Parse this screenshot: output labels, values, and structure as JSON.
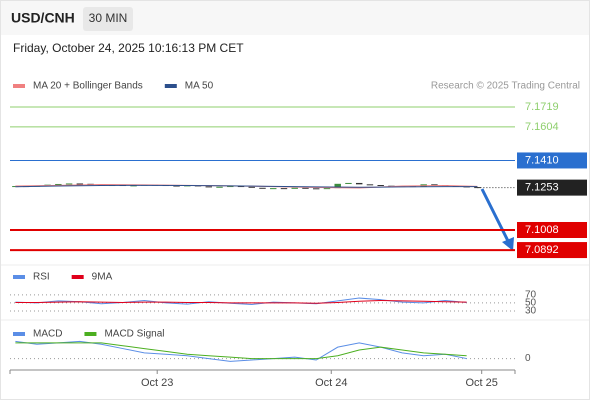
{
  "header": {
    "symbol": "USD/CNH",
    "timeframe": "30 MIN",
    "datetime": "Friday, October 24, 2025 10:16:13 PM CET"
  },
  "chart_data": [
    {
      "type": "candlestick",
      "source": "Research © 2025 Trading Central",
      "xlim": [
        -0.5,
        46.5
      ],
      "ylim": [
        7.0823,
        7.1904
      ],
      "yticks": [
        7.1719,
        7.1604,
        {
          "value": 7.141,
          "label": "7.1410"
        },
        7.1008,
        7.0892
      ],
      "ytick_colors": [
        "#8fcf6e",
        "#8fcf6e",
        "#2a6fcf",
        "#e00000",
        "#e00000"
      ],
      "label_boxes": [
        false,
        false,
        true,
        true,
        true
      ],
      "last": 7.1253,
      "up_color": "#3c8c3c",
      "down_color": "#333333",
      "open": [
        7.126,
        7.1262,
        7.1258,
        7.1265,
        7.127,
        7.1274,
        7.1277,
        7.1275,
        7.1271,
        7.1266,
        7.1268,
        7.1263,
        7.1266,
        7.127,
        7.1268,
        7.1265,
        7.1262,
        7.1266,
        7.126,
        7.1255,
        7.1258,
        7.1262,
        7.1258,
        7.1252,
        7.1248,
        7.125,
        7.1246,
        7.1252,
        7.1249,
        7.1245,
        7.125,
        7.1275,
        7.128,
        7.1272,
        7.1268,
        7.1264,
        7.1259,
        7.1262,
        7.1258,
        7.1272,
        7.1268,
        7.1264,
        7.126,
        7.1256
      ],
      "close": [
        7.1262,
        7.1258,
        7.1265,
        7.127,
        7.1274,
        7.1277,
        7.1275,
        7.1271,
        7.1266,
        7.1268,
        7.1263,
        7.1266,
        7.127,
        7.1268,
        7.1265,
        7.1262,
        7.1266,
        7.126,
        7.1255,
        7.1258,
        7.1262,
        7.1258,
        7.1252,
        7.1248,
        7.125,
        7.1246,
        7.1252,
        7.1249,
        7.1245,
        7.125,
        7.1275,
        7.128,
        7.1272,
        7.1268,
        7.1264,
        7.1259,
        7.1262,
        7.1258,
        7.1272,
        7.1268,
        7.1264,
        7.126,
        7.1256,
        7.1253
      ],
      "series": [
        {
          "name": "MA 20 + Bollinger Bands",
          "color": "#f08080",
          "x": [
            0,
            4,
            8,
            12,
            16,
            20,
            24,
            28,
            32,
            36,
            40,
            43
          ],
          "values": [
            7.1262,
            7.1266,
            7.1271,
            7.1269,
            7.1266,
            7.1263,
            7.1259,
            7.1254,
            7.1251,
            7.1262,
            7.1265,
            7.126
          ]
        },
        {
          "name": "MA 50",
          "color": "#2c4f8c",
          "x": [
            0,
            4,
            8,
            12,
            16,
            20,
            24,
            28,
            32,
            36,
            40,
            43
          ],
          "values": [
            7.1258,
            7.1262,
            7.1265,
            7.1266,
            7.1265,
            7.1263,
            7.126,
            7.1257,
            7.1255,
            7.1257,
            7.1259,
            7.1259
          ]
        }
      ]
    },
    {
      "type": "line",
      "xlim": [
        -0.5,
        46.5
      ],
      "ylim": [
        20,
        82
      ],
      "yticks": [
        70,
        50,
        30
      ],
      "series": [
        {
          "name": "RSI",
          "color": "#5b8ee6",
          "x": [
            0,
            2,
            4,
            6,
            8,
            10,
            12,
            14,
            16,
            18,
            20,
            22,
            24,
            26,
            28,
            30,
            32,
            34,
            36,
            38,
            40,
            42
          ],
          "values": [
            52,
            50,
            55,
            53,
            48,
            51,
            56,
            50,
            47,
            53,
            49,
            46,
            52,
            50,
            48,
            55,
            62,
            58,
            52,
            50,
            56,
            51
          ]
        },
        {
          "name": "9MA",
          "color": "#e0001b",
          "x": [
            0,
            2,
            4,
            6,
            8,
            10,
            12,
            14,
            16,
            18,
            20,
            22,
            24,
            26,
            28,
            30,
            32,
            34,
            36,
            38,
            40,
            42
          ],
          "values": [
            51,
            51,
            52,
            53,
            52,
            51,
            52,
            52,
            51,
            51,
            50,
            50,
            50,
            50,
            49,
            51,
            54,
            56,
            55,
            54,
            53,
            52
          ]
        }
      ]
    },
    {
      "type": "line",
      "xlim": [
        -0.5,
        46.5
      ],
      "ylim": [
        -0.0008,
        0.002
      ],
      "yticks": [
        0
      ],
      "xticks": [
        {
          "value": 13.2,
          "label": "Oct 23"
        },
        {
          "value": 29.4,
          "label": "Oct 24"
        },
        {
          "value": 43.4,
          "label": "Oct 25"
        }
      ],
      "series": [
        {
          "name": "MACD",
          "color": "#5b8ee6",
          "x": [
            0,
            2,
            4,
            6,
            8,
            10,
            12,
            14,
            16,
            18,
            20,
            22,
            24,
            26,
            28,
            30,
            32,
            34,
            36,
            38,
            40,
            42
          ],
          "values": [
            0.0012,
            0.001,
            0.0011,
            0.0012,
            0.001,
            0.0007,
            0.0004,
            0.0003,
            0.0002,
            0.0,
            -0.0002,
            -0.0001,
            0.0,
            0.0001,
            -0.0001,
            0.0008,
            0.0011,
            0.0008,
            0.0004,
            0.0002,
            0.0003,
            0.0
          ]
        },
        {
          "name": "MACD Signal",
          "color": "#4caf20",
          "x": [
            0,
            2,
            4,
            6,
            8,
            10,
            12,
            14,
            16,
            18,
            20,
            22,
            24,
            26,
            28,
            30,
            32,
            34,
            36,
            38,
            40,
            42
          ],
          "values": [
            0.0011,
            0.0011,
            0.0011,
            0.0011,
            0.0011,
            0.0009,
            0.0007,
            0.0005,
            0.0003,
            0.0002,
            0.0001,
            0.0,
            0.0,
            0.0,
            0.0,
            0.0002,
            0.0006,
            0.0008,
            0.0006,
            0.0004,
            0.0003,
            0.0002
          ]
        }
      ]
    }
  ]
}
